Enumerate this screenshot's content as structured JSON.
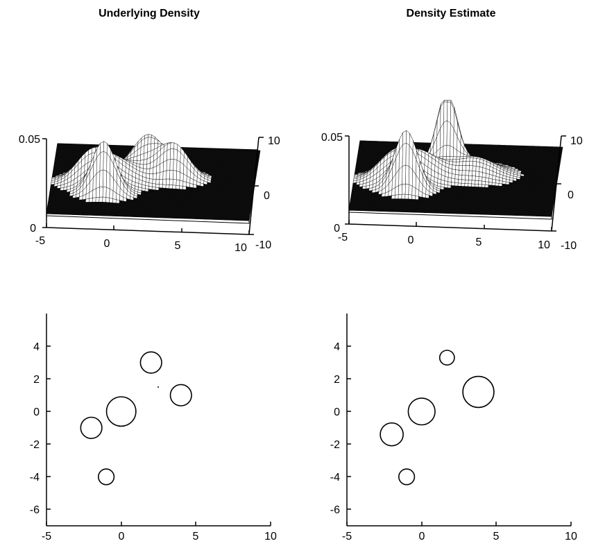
{
  "chart_data": [
    {
      "type": "surface",
      "title": "Underlying Density",
      "x_range": [
        -5,
        10
      ],
      "y_range": [
        -10,
        10
      ],
      "z_range": [
        0,
        0.05
      ],
      "x_ticks": [
        "-5",
        "0",
        "5",
        "10"
      ],
      "y_ticks": [
        "-10",
        "0",
        "10"
      ],
      "z_ticks": [
        "0",
        "0.05"
      ],
      "components": [
        {
          "mean": [
            -2,
            -1
          ],
          "sigma": 1.2
        },
        {
          "mean": [
            -1,
            -4
          ],
          "sigma": 0.9
        },
        {
          "mean": [
            0,
            0
          ],
          "sigma": 1.5
        },
        {
          "mean": [
            2,
            3
          ],
          "sigma": 1.1
        },
        {
          "mean": [
            4,
            1
          ],
          "sigma": 1.1
        }
      ]
    },
    {
      "type": "surface",
      "title": "Density Estimate",
      "x_range": [
        -5,
        10
      ],
      "y_range": [
        -10,
        10
      ],
      "z_range": [
        0,
        0.05
      ],
      "x_ticks": [
        "-5",
        "0",
        "5",
        "10"
      ],
      "y_ticks": [
        "-10",
        "0",
        "10"
      ],
      "z_ticks": [
        "0",
        "0.05"
      ],
      "components": [
        {
          "mean": [
            -2,
            -1.4
          ],
          "sigma": 1.25
        },
        {
          "mean": [
            -1,
            -4
          ],
          "sigma": 0.85
        },
        {
          "mean": [
            0,
            0
          ],
          "sigma": 1.35
        },
        {
          "mean": [
            1.7,
            3.3
          ],
          "sigma": 0.75
        },
        {
          "mean": [
            3.8,
            1.2
          ],
          "sigma": 1.55
        }
      ]
    },
    {
      "type": "scatter",
      "marker": "circle",
      "x_range": [
        -5,
        10
      ],
      "y_range": [
        -7,
        6
      ],
      "x_ticks": [
        "-5",
        "0",
        "5",
        "10"
      ],
      "y_ticks": [
        "4",
        "2",
        "0",
        "-2",
        "-4",
        "-6"
      ],
      "points": [
        {
          "x": -2,
          "y": -1,
          "r": 0.65
        },
        {
          "x": -1,
          "y": -4,
          "r": 0.48
        },
        {
          "x": 0,
          "y": 0,
          "r": 0.9
        },
        {
          "x": 2,
          "y": 3,
          "r": 0.65
        },
        {
          "x": 4,
          "y": 1,
          "r": 0.65
        }
      ]
    },
    {
      "type": "scatter",
      "marker": "circle",
      "x_range": [
        -5,
        10
      ],
      "y_range": [
        -7,
        6
      ],
      "x_ticks": [
        "-5",
        "0",
        "5",
        "10"
      ],
      "y_ticks": [
        "4",
        "2",
        "0",
        "-2",
        "-4",
        "-6"
      ],
      "points": [
        {
          "x": -2,
          "y": -1.4,
          "r": 0.7
        },
        {
          "x": -1,
          "y": -4,
          "r": 0.48
        },
        {
          "x": 0,
          "y": 0,
          "r": 0.82
        },
        {
          "x": 1.7,
          "y": 3.3,
          "r": 0.45
        },
        {
          "x": 3.8,
          "y": 1.2,
          "r": 0.95
        }
      ]
    }
  ]
}
